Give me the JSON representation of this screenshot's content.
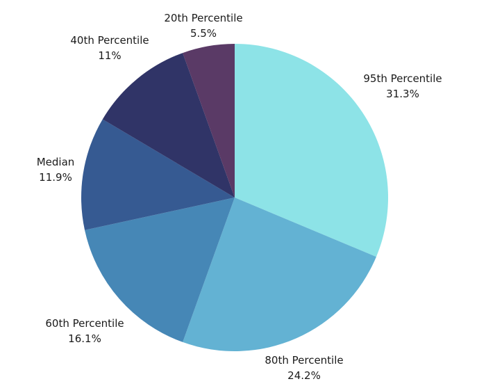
{
  "chart_data": {
    "type": "pie",
    "slices": [
      {
        "label": "95th Percentile",
        "value": 31.3,
        "value_label": "31.3%",
        "color": "#8DE3E7"
      },
      {
        "label": "80th Percentile",
        "value": 24.2,
        "value_label": "24.2%",
        "color": "#63B2D3"
      },
      {
        "label": "60th Percentile",
        "value": 16.1,
        "value_label": "16.1%",
        "color": "#4687B6"
      },
      {
        "label": "Median",
        "value": 11.9,
        "value_label": "11.9%",
        "color": "#365A92"
      },
      {
        "label": "40th Percentile",
        "value": 11,
        "value_label": "11%",
        "color": "#303467"
      },
      {
        "label": "20th Percentile",
        "value": 5.5,
        "value_label": "5.5%",
        "color": "#5A3A66"
      }
    ],
    "start_angle_deg": 0,
    "direction": "clockwise",
    "legend": "none"
  }
}
